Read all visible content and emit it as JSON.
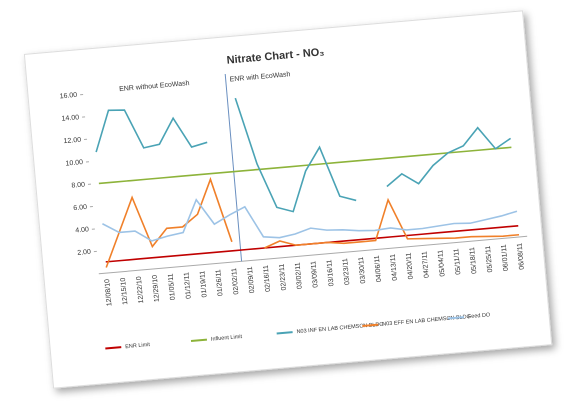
{
  "chart_data": {
    "type": "line",
    "title": "Nitrate Chart - NO₃",
    "annotations": [
      "ENR without EcoWash",
      "ENR with EcoWash"
    ],
    "categories": [
      "12/08/10",
      "12/15/10",
      "12/22/10",
      "12/29/10",
      "01/05/11",
      "01/12/11",
      "01/19/11",
      "01/26/11",
      "02/02/11",
      "02/09/11",
      "02/16/11",
      "02/23/11",
      "03/02/11",
      "03/09/11",
      "03/16/11",
      "03/23/11",
      "03/30/11",
      "04/06/11",
      "04/13/11",
      "04/20/11",
      "04/27/11",
      "05/04/11",
      "05/11/11",
      "05/18/11",
      "05/25/11",
      "06/01/11",
      "06/08/11"
    ],
    "series": [
      {
        "name": "ENR Limit",
        "color": "#c00000",
        "values": [
          1,
          1,
          1,
          1,
          1,
          1,
          1,
          1,
          1,
          1,
          1,
          1,
          1,
          1,
          1,
          1,
          1,
          1,
          1,
          1,
          1,
          1,
          1,
          1,
          1,
          1,
          1
        ]
      },
      {
        "name": "Influent Limit",
        "color": "#8db33a",
        "values": [
          8,
          8,
          8,
          8,
          8,
          8,
          8,
          8,
          8,
          8,
          8,
          8,
          8,
          8,
          8,
          8,
          8,
          8,
          8,
          8,
          8,
          8,
          8,
          8,
          8,
          8,
          8
        ]
      },
      {
        "name": "N03 INF EN LAB CHEMSCN BLDG",
        "color": "#4aa3b5",
        "values": [
          10.8,
          14.4,
          14.3,
          10.8,
          11.0,
          13.2,
          10.5,
          10.8,
          null,
          14.5,
          8.5,
          4.5,
          4.0,
          7.5,
          9.5,
          5.0,
          4.5,
          null,
          5.5,
          6.5,
          5.5,
          7.0,
          8.0,
          8.5,
          10.0,
          8.0,
          8.8
        ]
      },
      {
        "name": "N03 EFF EN LAB CHEMSCN BLDG",
        "color": "#f0802a",
        "values": [
          0.5,
          3.5,
          6.5,
          2.0,
          3.5,
          3.5,
          4.5,
          7.5,
          1.8,
          null,
          1.0,
          1.5,
          1.0,
          1.0,
          1.0,
          0.8,
          0.8,
          0.8,
          4.3,
          0.7,
          0.6,
          0.5,
          0.4,
          0.4,
          0.3,
          0.2,
          0.2
        ]
      },
      {
        "name": "Feed DO",
        "color": "#9dc3e6",
        "values": [
          4.4,
          3.5,
          3.5,
          2.5,
          2.8,
          3.0,
          5.8,
          3.5,
          4.2,
          4.8,
          2.0,
          1.8,
          2.0,
          2.4,
          2.1,
          2.0,
          1.8,
          1.7,
          1.8,
          1.5,
          1.5,
          1.6,
          1.7,
          1.6,
          1.8,
          2.0,
          2.3
        ]
      }
    ],
    "ylim": [
      0,
      16
    ],
    "yticks": [
      {
        "value": 2,
        "label": "2.00"
      },
      {
        "value": 4,
        "label": "4.00"
      },
      {
        "value": 6,
        "label": "6.00"
      },
      {
        "value": 8,
        "label": "8.00"
      },
      {
        "value": 10,
        "label": "10.00"
      },
      {
        "value": 12,
        "label": "12.00"
      },
      {
        "value": 14,
        "label": "14.00"
      },
      {
        "value": 16,
        "label": "16.00"
      }
    ],
    "grid": false,
    "legend": "bottom"
  }
}
